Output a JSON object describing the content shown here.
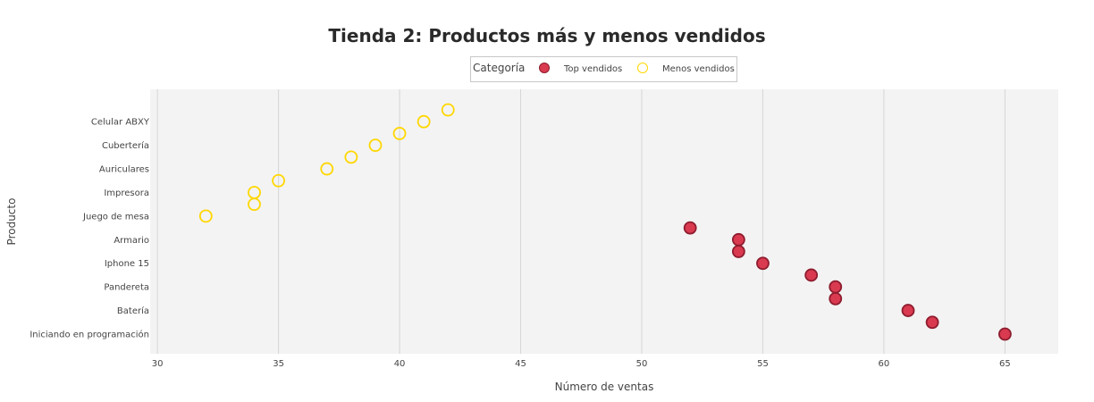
{
  "chart_data": {
    "type": "scatter",
    "title": "Tienda 2: Productos más y menos vendidos",
    "xlabel": "Número de ventas",
    "ylabel": "Producto",
    "xlim": [
      29.7,
      67.2
    ],
    "xticks": [
      30,
      35,
      40,
      45,
      50,
      55,
      60,
      65
    ],
    "grid": true,
    "legend": {
      "title": "Categoría",
      "placement": "top-center"
    },
    "y_tick_labels": [
      "Celular ABXY",
      "Cubertería",
      "Auriculares",
      "Impresora",
      "Juego de mesa",
      "Armario",
      "Iphone 15",
      "Pandereta",
      "Batería",
      "Iniciando en programación"
    ],
    "series": [
      {
        "name": "Top vendidos",
        "color": "#d93a50",
        "marker": "filled-circle",
        "points": [
          {
            "y": "Armario",
            "x": 52,
            "row": 10
          },
          {
            "y": "Armario",
            "x": 54,
            "row": 11
          },
          {
            "y": "Iphone 15",
            "x": 54,
            "row": 12
          },
          {
            "y": "Iphone 15",
            "x": 55,
            "row": 13
          },
          {
            "y": "Pandereta",
            "x": 57,
            "row": 14
          },
          {
            "y": "Pandereta",
            "x": 58,
            "row": 15
          },
          {
            "y": "Batería",
            "x": 58,
            "row": 16
          },
          {
            "y": "Batería",
            "x": 61,
            "row": 17
          },
          {
            "y": "Iniciando en programación",
            "x": 62,
            "row": 18
          },
          {
            "y": "Iniciando en programación",
            "x": 65,
            "row": 19
          }
        ]
      },
      {
        "name": "Menos vendidos",
        "color": "#ffd700",
        "marker": "open-circle",
        "points": [
          {
            "y": "Celular ABXY",
            "x": 42,
            "row": 0
          },
          {
            "y": "Celular ABXY",
            "x": 41,
            "row": 1
          },
          {
            "y": "Cubertería",
            "x": 40,
            "row": 2
          },
          {
            "y": "Cubertería",
            "x": 39,
            "row": 3
          },
          {
            "y": "Auriculares",
            "x": 38,
            "row": 4
          },
          {
            "y": "Auriculares",
            "x": 37,
            "row": 5
          },
          {
            "y": "Impresora",
            "x": 35,
            "row": 6
          },
          {
            "y": "Impresora",
            "x": 34,
            "row": 7
          },
          {
            "y": "Juego de mesa",
            "x": 34,
            "row": 8
          },
          {
            "y": "Juego de mesa",
            "x": 32,
            "row": 9
          }
        ]
      }
    ]
  }
}
